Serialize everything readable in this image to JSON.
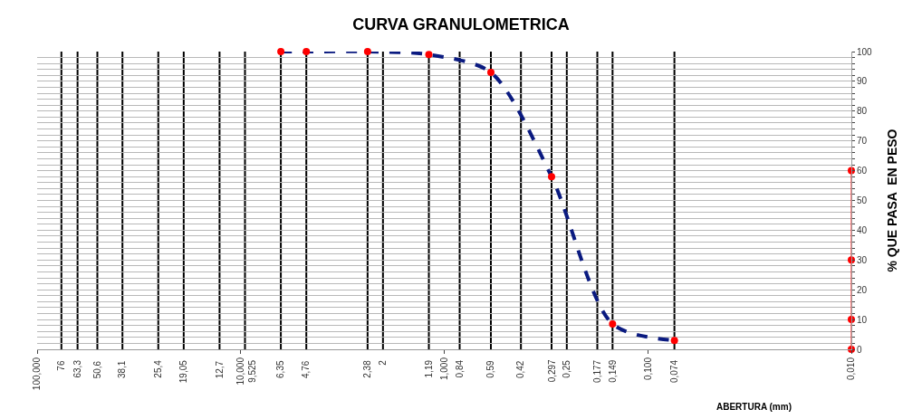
{
  "chart_data": {
    "type": "line",
    "title": "CURVA GRANULOMETRICA",
    "xlabel": "ABERTURA (mm)",
    "ylabel": "% QUE PASA  EN PESO",
    "log": "x",
    "grid": "y",
    "xlim": [
      100,
      0.01
    ],
    "xticks": [
      {
        "value": 100,
        "label": "100,000"
      },
      {
        "value": 10,
        "label": "10,000"
      },
      {
        "value": 1,
        "label": "1,000"
      },
      {
        "value": 0.1,
        "label": "0,100"
      },
      {
        "value": 0.01,
        "label": "0,010"
      }
    ],
    "ylim": [
      0,
      100
    ],
    "yticks": [
      0,
      {
        "value": 2,
        "label": null
      },
      {
        "value": 4,
        "label": null
      },
      {
        "value": 6,
        "label": null
      },
      {
        "value": 8,
        "label": null
      },
      10,
      {
        "value": 12,
        "label": null
      },
      {
        "value": 14,
        "label": null
      },
      {
        "value": 16,
        "label": null
      },
      {
        "value": 18,
        "label": null
      },
      20,
      {
        "value": 22,
        "label": null
      },
      {
        "value": 24,
        "label": null
      },
      {
        "value": 26,
        "label": null
      },
      {
        "value": 28,
        "label": null
      },
      30,
      {
        "value": 32,
        "label": null
      },
      {
        "value": 34,
        "label": null
      },
      {
        "value": 36,
        "label": null
      },
      {
        "value": 38,
        "label": null
      },
      40,
      {
        "value": 42,
        "label": null
      },
      {
        "value": 44,
        "label": null
      },
      {
        "value": 46,
        "label": null
      },
      {
        "value": 48,
        "label": null
      },
      50,
      {
        "value": 52,
        "label": null
      },
      {
        "value": 54,
        "label": null
      },
      {
        "value": 56,
        "label": null
      },
      {
        "value": 58,
        "label": null
      },
      60,
      {
        "value": 62,
        "label": null
      },
      {
        "value": 64,
        "label": null
      },
      {
        "value": 66,
        "label": null
      },
      {
        "value": 68,
        "label": null
      },
      70,
      {
        "value": 72,
        "label": null
      },
      {
        "value": 74,
        "label": null
      },
      {
        "value": 76,
        "label": null
      },
      {
        "value": 78,
        "label": null
      },
      80,
      {
        "value": 82,
        "label": null
      },
      {
        "value": 84,
        "label": null
      },
      {
        "value": 86,
        "label": null
      },
      {
        "value": 88,
        "label": null
      },
      90,
      {
        "value": 92,
        "label": null
      },
      {
        "value": 94,
        "label": null
      },
      {
        "value": 96,
        "label": null
      },
      {
        "value": 98,
        "label": null
      },
      100
    ],
    "series": [
      {
        "color": "#0a1a80",
        "line_style": "dashed",
        "marker": "none",
        "x": [
          6.35,
          4.76,
          2.38,
          1.19,
          0.59,
          0.297,
          0.149,
          0.074
        ],
        "values": [
          100,
          100,
          100,
          99,
          93,
          58,
          8.5,
          3
        ]
      },
      {
        "type": "scatter",
        "color": "#ff0000",
        "marker": "circle",
        "x": [
          6.35,
          4.76,
          2.38,
          1.19,
          0.59,
          0.297,
          0.149,
          0.074
        ],
        "values": [
          100,
          100,
          100,
          99,
          93,
          58,
          8.5,
          3
        ]
      },
      {
        "type": "line",
        "color": "#ff0000",
        "marker": "circle",
        "line_style": "solid",
        "x": [
          0.01,
          0.01,
          0.01,
          0.01
        ],
        "values": [
          0,
          10,
          30,
          60
        ]
      }
    ],
    "ref_lines": [
      {
        "axis": "x",
        "value": 76,
        "label": "76",
        "color": "#000000"
      },
      {
        "axis": "x",
        "value": 63.3,
        "label": "63,3",
        "color": "#000000"
      },
      {
        "axis": "x",
        "value": 50.6,
        "label": "50,6",
        "color": "#000000"
      },
      {
        "axis": "x",
        "value": 38.1,
        "label": "38,1",
        "color": "#000000"
      },
      {
        "axis": "x",
        "value": 25.4,
        "label": "25,4",
        "color": "#000000"
      },
      {
        "axis": "x",
        "value": 19.05,
        "label": "19,05",
        "color": "#000000"
      },
      {
        "axis": "x",
        "value": 12.7,
        "label": "12,7",
        "color": "#000000"
      },
      {
        "axis": "x",
        "value": 9.525,
        "label": "9,525",
        "color": "#000000"
      },
      {
        "axis": "x",
        "value": 6.35,
        "label": "6,35",
        "color": "#000000"
      },
      {
        "axis": "x",
        "value": 4.76,
        "label": "4,76",
        "color": "#000000"
      },
      {
        "axis": "x",
        "value": 2.38,
        "label": "2,38",
        "color": "#000000"
      },
      {
        "axis": "x",
        "value": 2,
        "label": "2",
        "color": "#000000"
      },
      {
        "axis": "x",
        "value": 1.19,
        "label": "1,19",
        "color": "#000000"
      },
      {
        "axis": "x",
        "value": 0.84,
        "label": "0,84",
        "color": "#000000"
      },
      {
        "axis": "x",
        "value": 0.59,
        "label": "0,59",
        "color": "#000000"
      },
      {
        "axis": "x",
        "value": 0.42,
        "label": "0,42",
        "color": "#000000"
      },
      {
        "axis": "x",
        "value": 0.297,
        "label": "0,297",
        "color": "#000000"
      },
      {
        "axis": "x",
        "value": 0.25,
        "label": "0,25",
        "color": "#000000"
      },
      {
        "axis": "x",
        "value": 0.177,
        "label": "0,177",
        "color": "#000000"
      },
      {
        "axis": "x",
        "value": 0.149,
        "label": "0,149",
        "color": "#000000"
      },
      {
        "axis": "x",
        "value": 0.074,
        "label": "0,074",
        "color": "#000000"
      }
    ]
  }
}
